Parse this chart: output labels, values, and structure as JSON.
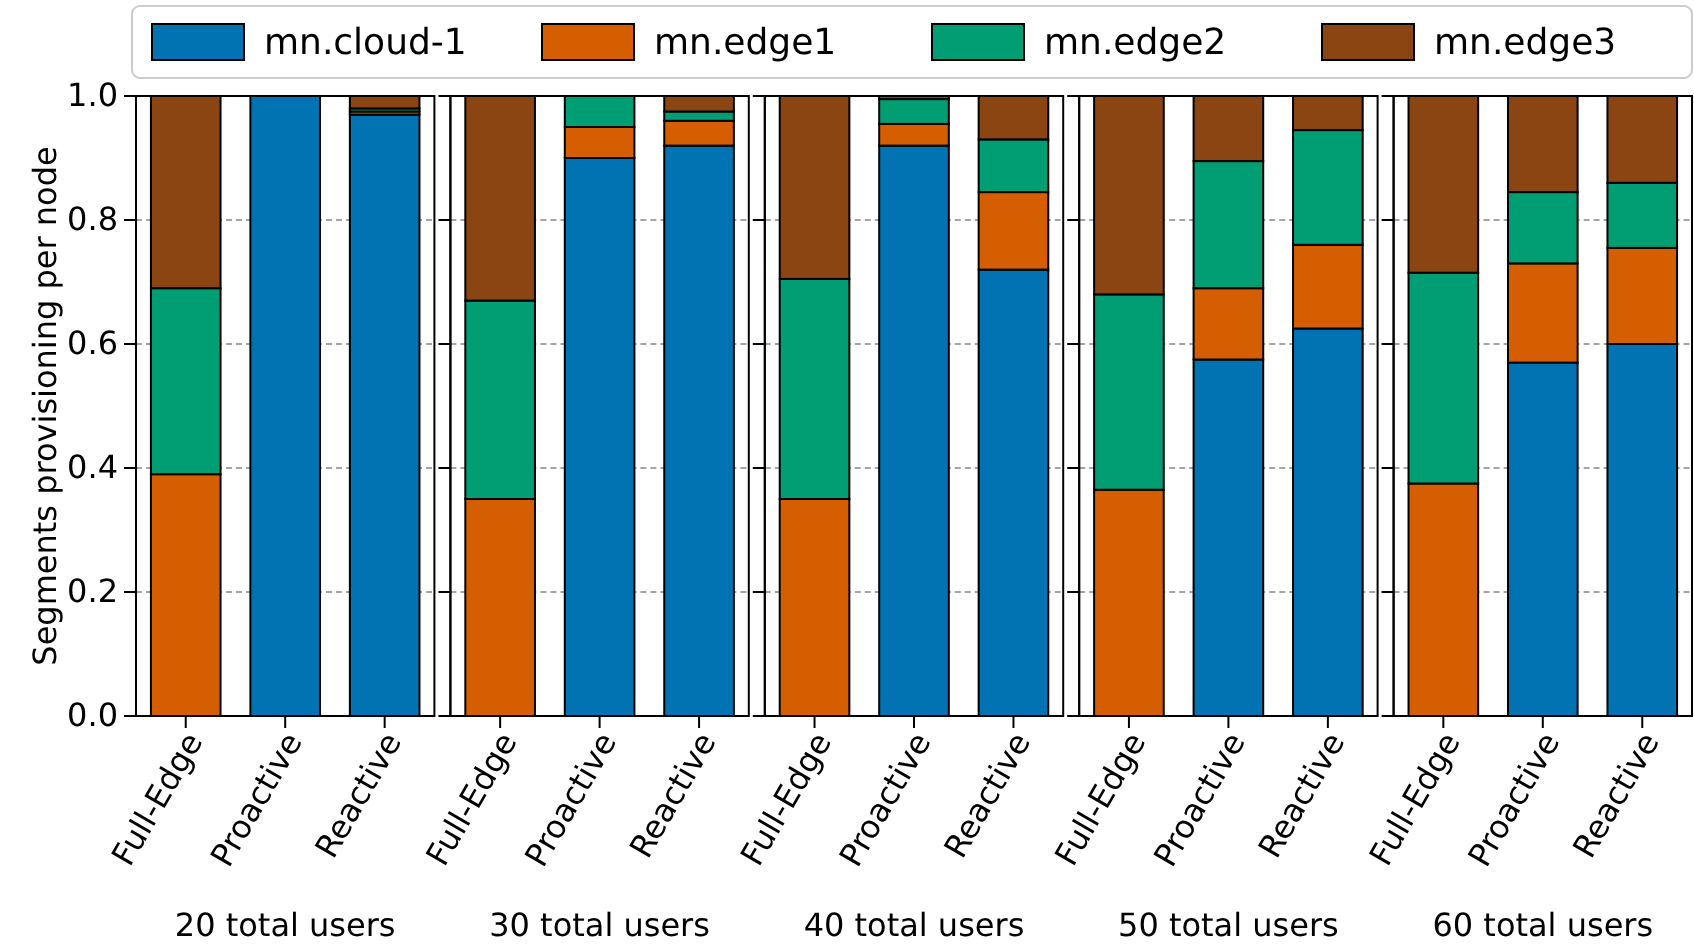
{
  "chart_data": [
    {
      "type": "bar",
      "stacked": true,
      "categories": [
        "Full-Edge",
        "Proactive",
        "Reactive"
      ],
      "xlabel": "20 total users",
      "ylabel": "Segments provisioning per node",
      "ylim": [
        0,
        1
      ],
      "yticks": [
        {
          "value": 0,
          "label": "0.0"
        },
        {
          "value": 0.2,
          "label": "0.2"
        },
        {
          "value": 0.4,
          "label": "0.4"
        },
        {
          "value": 0.6,
          "label": "0.6"
        },
        {
          "value": 0.8,
          "label": "0.8"
        },
        {
          "value": 1,
          "label": "1.0"
        }
      ],
      "grid": "y",
      "legend": "top",
      "series": [
        {
          "name": "mn.cloud-1",
          "color": "#0173b2",
          "values": [
            0,
            1,
            0.97
          ]
        },
        {
          "name": "mn.edge1",
          "color": "#d55e00",
          "values": [
            0.39,
            0,
            0.005
          ]
        },
        {
          "name": "mn.edge2",
          "color": "#029e73",
          "values": [
            0.3,
            0,
            0.005
          ]
        },
        {
          "name": "mn.edge3",
          "color": "#8b4513",
          "values": [
            0.31,
            0,
            0.02
          ]
        }
      ]
    },
    {
      "type": "bar",
      "stacked": true,
      "categories": [
        "Full-Edge",
        "Proactive",
        "Reactive"
      ],
      "xlabel": "30 total users",
      "ylim": [
        0,
        1
      ],
      "yticks": [
        0,
        0.2,
        0.4,
        0.6,
        0.8,
        1
      ],
      "grid": "y",
      "tick_labels": "x",
      "series": [
        {
          "color": "#0173b2",
          "values": [
            0,
            0.9,
            0.92
          ]
        },
        {
          "color": "#d55e00",
          "values": [
            0.35,
            0.05,
            0.04
          ]
        },
        {
          "color": "#029e73",
          "values": [
            0.32,
            0.05,
            0.015
          ]
        },
        {
          "color": "#8b4513",
          "values": [
            0.33,
            0,
            0.025
          ]
        }
      ]
    },
    {
      "type": "bar",
      "stacked": true,
      "categories": [
        "Full-Edge",
        "Proactive",
        "Reactive"
      ],
      "xlabel": "40 total users",
      "ylim": [
        0,
        1
      ],
      "yticks": [
        0,
        0.2,
        0.4,
        0.6,
        0.8,
        1
      ],
      "grid": "y",
      "tick_labels": "x",
      "series": [
        {
          "color": "#0173b2",
          "values": [
            0,
            0.92,
            0.72
          ]
        },
        {
          "color": "#d55e00",
          "values": [
            0.35,
            0.035,
            0.125
          ]
        },
        {
          "color": "#029e73",
          "values": [
            0.355,
            0.04,
            0.085
          ]
        },
        {
          "color": "#8b4513",
          "values": [
            0.295,
            0.005,
            0.07
          ]
        }
      ]
    },
    {
      "type": "bar",
      "stacked": true,
      "categories": [
        "Full-Edge",
        "Proactive",
        "Reactive"
      ],
      "xlabel": "50 total users",
      "ylim": [
        0,
        1
      ],
      "yticks": [
        0,
        0.2,
        0.4,
        0.6,
        0.8,
        1
      ],
      "grid": "y",
      "tick_labels": "x",
      "series": [
        {
          "color": "#0173b2",
          "values": [
            0,
            0.575,
            0.625
          ]
        },
        {
          "color": "#d55e00",
          "values": [
            0.365,
            0.115,
            0.135
          ]
        },
        {
          "color": "#029e73",
          "values": [
            0.315,
            0.205,
            0.185
          ]
        },
        {
          "color": "#8b4513",
          "values": [
            0.32,
            0.105,
            0.055
          ]
        }
      ]
    },
    {
      "type": "bar",
      "stacked": true,
      "categories": [
        "Full-Edge",
        "Proactive",
        "Reactive"
      ],
      "xlabel": "60 total users",
      "ylim": [
        0,
        1
      ],
      "yticks": [
        0,
        0.2,
        0.4,
        0.6,
        0.8,
        1
      ],
      "grid": "y",
      "tick_labels": "x",
      "series": [
        {
          "color": "#0173b2",
          "values": [
            0,
            0.57,
            0.6
          ]
        },
        {
          "color": "#d55e00",
          "values": [
            0.375,
            0.16,
            0.155
          ]
        },
        {
          "color": "#029e73",
          "values": [
            0.34,
            0.115,
            0.105
          ]
        },
        {
          "color": "#8b4513",
          "values": [
            0.285,
            0.155,
            0.14
          ]
        }
      ]
    }
  ]
}
